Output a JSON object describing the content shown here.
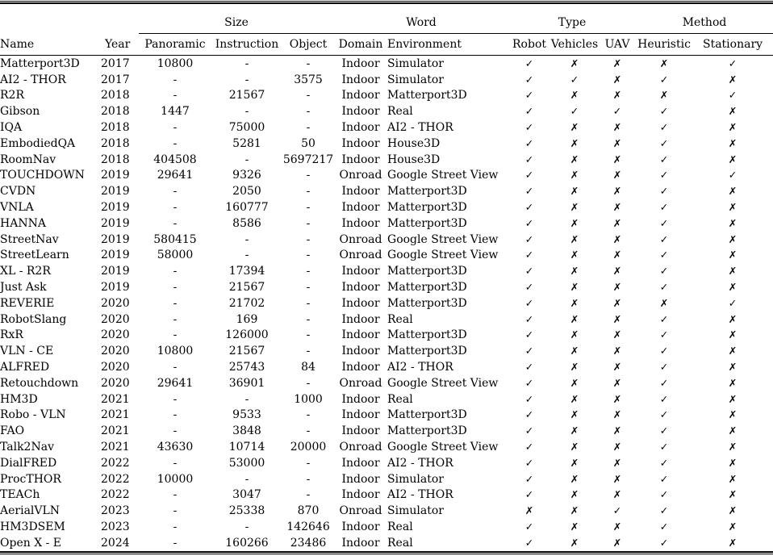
{
  "table": {
    "corner_headers": {
      "name": "Name",
      "year": "Year"
    },
    "group_headers": [
      {
        "label": "Size",
        "span": 3
      },
      {
        "label": "Word",
        "span": 2
      },
      {
        "label": "Type",
        "span": 3
      },
      {
        "label": "Method",
        "span": 2
      }
    ],
    "sub_headers": [
      "Panoramic",
      "Instruction",
      "Object",
      "Domain",
      "Environment",
      "Robot",
      "Vehicles",
      "UAV",
      "Heuristic",
      "Stationary"
    ],
    "check_icon": "✓",
    "cross_icon": "✗",
    "rows": [
      {
        "name": "Matterport3D",
        "year": "2017",
        "panoramic": "10800",
        "instruction": "-",
        "object": "-",
        "domain": "Indoor",
        "environment": "Simulator",
        "robot": true,
        "vehicles": false,
        "uav": false,
        "heuristic": false,
        "stationary": true
      },
      {
        "name": "AI2 - THOR",
        "year": "2017",
        "panoramic": "-",
        "instruction": "-",
        "object": "3575",
        "domain": "Indoor",
        "environment": "Simulator",
        "robot": true,
        "vehicles": true,
        "uav": false,
        "heuristic": true,
        "stationary": false
      },
      {
        "name": "R2R",
        "year": "2018",
        "panoramic": "-",
        "instruction": "21567",
        "object": "-",
        "domain": "Indoor",
        "environment": "Matterport3D",
        "robot": true,
        "vehicles": false,
        "uav": false,
        "heuristic": false,
        "stationary": true
      },
      {
        "name": "Gibson",
        "year": "2018",
        "panoramic": "1447",
        "instruction": "-",
        "object": "-",
        "domain": "Indoor",
        "environment": "Real",
        "robot": true,
        "vehicles": true,
        "uav": true,
        "heuristic": true,
        "stationary": false
      },
      {
        "name": "IQA",
        "year": "2018",
        "panoramic": "-",
        "instruction": "75000",
        "object": "-",
        "domain": "Indoor",
        "environment": "AI2 - THOR",
        "robot": true,
        "vehicles": false,
        "uav": false,
        "heuristic": true,
        "stationary": false
      },
      {
        "name": "EmbodiedQA",
        "year": "2018",
        "panoramic": "-",
        "instruction": "5281",
        "object": "50",
        "domain": "Indoor",
        "environment": "House3D",
        "robot": true,
        "vehicles": false,
        "uav": false,
        "heuristic": true,
        "stationary": false
      },
      {
        "name": "RoomNav",
        "year": "2018",
        "panoramic": "404508",
        "instruction": "-",
        "object": "5697217",
        "domain": "Indoor",
        "environment": "House3D",
        "robot": true,
        "vehicles": false,
        "uav": false,
        "heuristic": true,
        "stationary": false
      },
      {
        "name": "TOUCHDOWN",
        "year": "2019",
        "panoramic": "29641",
        "instruction": "9326",
        "object": "-",
        "domain": "Onroad",
        "environment": "Google Street View",
        "robot": true,
        "vehicles": false,
        "uav": false,
        "heuristic": true,
        "stationary": true
      },
      {
        "name": "CVDN",
        "year": "2019",
        "panoramic": "-",
        "instruction": "2050",
        "object": "-",
        "domain": "Indoor",
        "environment": "Matterport3D",
        "robot": true,
        "vehicles": false,
        "uav": false,
        "heuristic": true,
        "stationary": false
      },
      {
        "name": "VNLA",
        "year": "2019",
        "panoramic": "-",
        "instruction": "160777",
        "object": "-",
        "domain": "Indoor",
        "environment": "Matterport3D",
        "robot": true,
        "vehicles": false,
        "uav": false,
        "heuristic": true,
        "stationary": false
      },
      {
        "name": "HANNA",
        "year": "2019",
        "panoramic": "-",
        "instruction": "8586",
        "object": "-",
        "domain": "Indoor",
        "environment": "Matterport3D",
        "robot": true,
        "vehicles": false,
        "uav": false,
        "heuristic": true,
        "stationary": false
      },
      {
        "name": "StreetNav",
        "year": "2019",
        "panoramic": "580415",
        "instruction": "-",
        "object": "-",
        "domain": "Onroad",
        "environment": "Google Street View",
        "robot": true,
        "vehicles": false,
        "uav": false,
        "heuristic": true,
        "stationary": false
      },
      {
        "name": "StreetLearn",
        "year": "2019",
        "panoramic": "58000",
        "instruction": "-",
        "object": "-",
        "domain": "Onroad",
        "environment": "Google Street View",
        "robot": true,
        "vehicles": false,
        "uav": false,
        "heuristic": true,
        "stationary": false
      },
      {
        "name": "XL - R2R",
        "year": "2019",
        "panoramic": "-",
        "instruction": "17394",
        "object": "-",
        "domain": "Indoor",
        "environment": "Matterport3D",
        "robot": true,
        "vehicles": false,
        "uav": false,
        "heuristic": true,
        "stationary": false
      },
      {
        "name": "Just Ask",
        "year": "2019",
        "panoramic": "-",
        "instruction": "21567",
        "object": "-",
        "domain": "Indoor",
        "environment": "Matterport3D",
        "robot": true,
        "vehicles": false,
        "uav": false,
        "heuristic": true,
        "stationary": false
      },
      {
        "name": "REVERIE",
        "year": "2020",
        "panoramic": "-",
        "instruction": "21702",
        "object": "-",
        "domain": "Indoor",
        "environment": "Matterport3D",
        "robot": true,
        "vehicles": false,
        "uav": false,
        "heuristic": false,
        "stationary": true
      },
      {
        "name": "RobotSlang",
        "year": "2020",
        "panoramic": "-",
        "instruction": "169",
        "object": "-",
        "domain": "Indoor",
        "environment": "Real",
        "robot": true,
        "vehicles": false,
        "uav": false,
        "heuristic": true,
        "stationary": false
      },
      {
        "name": "RxR",
        "year": "2020",
        "panoramic": "-",
        "instruction": "126000",
        "object": "-",
        "domain": "Indoor",
        "environment": "Matterport3D",
        "robot": true,
        "vehicles": false,
        "uav": false,
        "heuristic": true,
        "stationary": false
      },
      {
        "name": "VLN - CE",
        "year": "2020",
        "panoramic": "10800",
        "instruction": "21567",
        "object": "-",
        "domain": "Indoor",
        "environment": "Matterport3D",
        "robot": true,
        "vehicles": false,
        "uav": false,
        "heuristic": true,
        "stationary": false
      },
      {
        "name": "ALFRED",
        "year": "2020",
        "panoramic": "-",
        "instruction": "25743",
        "object": "84",
        "domain": "Indoor",
        "environment": "AI2 - THOR",
        "robot": true,
        "vehicles": false,
        "uav": false,
        "heuristic": true,
        "stationary": false
      },
      {
        "name": "Retouchdown",
        "year": "2020",
        "panoramic": "29641",
        "instruction": "36901",
        "object": "-",
        "domain": "Onroad",
        "environment": "Google Street View",
        "robot": true,
        "vehicles": false,
        "uav": false,
        "heuristic": true,
        "stationary": false
      },
      {
        "name": "HM3D",
        "year": "2021",
        "panoramic": "-",
        "instruction": "-",
        "object": "1000",
        "domain": "Indoor",
        "environment": "Real",
        "robot": true,
        "vehicles": false,
        "uav": false,
        "heuristic": true,
        "stationary": false
      },
      {
        "name": "Robo - VLN",
        "year": "2021",
        "panoramic": "-",
        "instruction": "9533",
        "object": "-",
        "domain": "Indoor",
        "environment": "Matterport3D",
        "robot": true,
        "vehicles": false,
        "uav": false,
        "heuristic": true,
        "stationary": false
      },
      {
        "name": "FAO",
        "year": "2021",
        "panoramic": "-",
        "instruction": "3848",
        "object": "-",
        "domain": "Indoor",
        "environment": "Matterport3D",
        "robot": true,
        "vehicles": false,
        "uav": false,
        "heuristic": true,
        "stationary": false
      },
      {
        "name": "Talk2Nav",
        "year": "2021",
        "panoramic": "43630",
        "instruction": "10714",
        "object": "20000",
        "domain": "Onroad",
        "environment": "Google Street View",
        "robot": true,
        "vehicles": false,
        "uav": false,
        "heuristic": true,
        "stationary": false
      },
      {
        "name": "DialFRED",
        "year": "2022",
        "panoramic": "-",
        "instruction": "53000",
        "object": "-",
        "domain": "Indoor",
        "environment": "AI2 - THOR",
        "robot": true,
        "vehicles": false,
        "uav": false,
        "heuristic": true,
        "stationary": false
      },
      {
        "name": "ProcTHOR",
        "year": "2022",
        "panoramic": "10000",
        "instruction": "-",
        "object": "-",
        "domain": "Indoor",
        "environment": "Simulator",
        "robot": true,
        "vehicles": false,
        "uav": false,
        "heuristic": true,
        "stationary": false
      },
      {
        "name": "TEACh",
        "year": "2022",
        "panoramic": "-",
        "instruction": "3047",
        "object": "-",
        "domain": "Indoor",
        "environment": "AI2 - THOR",
        "robot": true,
        "vehicles": false,
        "uav": false,
        "heuristic": true,
        "stationary": false
      },
      {
        "name": "AerialVLN",
        "year": "2023",
        "panoramic": "-",
        "instruction": "25338",
        "object": "870",
        "domain": "Onroad",
        "environment": "Simulator",
        "robot": false,
        "vehicles": false,
        "uav": true,
        "heuristic": true,
        "stationary": false
      },
      {
        "name": "HM3DSEM",
        "year": "2023",
        "panoramic": "-",
        "instruction": "-",
        "object": "142646",
        "domain": "Indoor",
        "environment": "Real",
        "robot": true,
        "vehicles": false,
        "uav": false,
        "heuristic": true,
        "stationary": false
      },
      {
        "name": "Open X - E",
        "year": "2024",
        "panoramic": "-",
        "instruction": "160266",
        "object": "23486",
        "domain": "Indoor",
        "environment": "Real",
        "robot": true,
        "vehicles": false,
        "uav": false,
        "heuristic": true,
        "stationary": false
      }
    ]
  }
}
